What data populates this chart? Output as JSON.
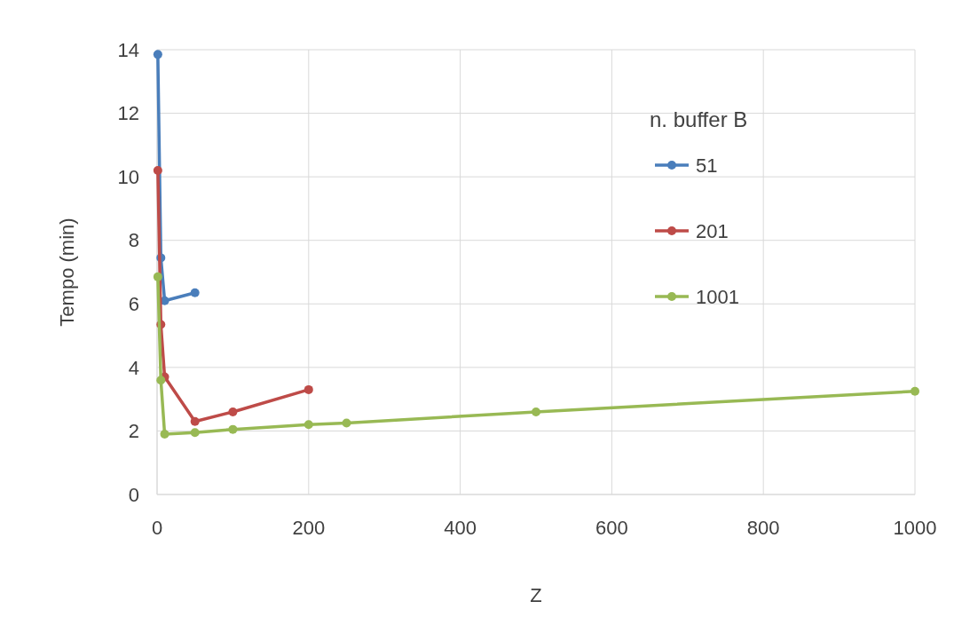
{
  "chart_data": {
    "type": "line",
    "xlabel": "Z",
    "ylabel": "Tempo (min)",
    "legend_title": "n. buffer B",
    "legend": "top right",
    "grid": true,
    "marker": "circle",
    "line_style": "solid",
    "xlim": [
      0,
      1000
    ],
    "xticks": [
      0,
      200,
      400,
      600,
      800,
      1000
    ],
    "ylim": [
      0,
      14
    ],
    "yticks": [
      0,
      2,
      4,
      6,
      8,
      10,
      12,
      14
    ],
    "series": [
      {
        "name": "51",
        "color": "#4a7ebb",
        "x": [
          1,
          5,
          10,
          50
        ],
        "values": [
          13.85,
          7.45,
          6.1,
          6.35
        ]
      },
      {
        "name": "201",
        "color": "#be4b48",
        "x": [
          1,
          5,
          10,
          50,
          100,
          200
        ],
        "values": [
          10.2,
          5.35,
          3.7,
          2.3,
          2.6,
          3.3
        ]
      },
      {
        "name": "1001",
        "color": "#98b954",
        "x": [
          1,
          5,
          10,
          50,
          100,
          200,
          250,
          500,
          1000
        ],
        "values": [
          6.85,
          3.6,
          1.9,
          1.95,
          2.05,
          2.2,
          2.25,
          2.6,
          3.25
        ]
      }
    ]
  }
}
